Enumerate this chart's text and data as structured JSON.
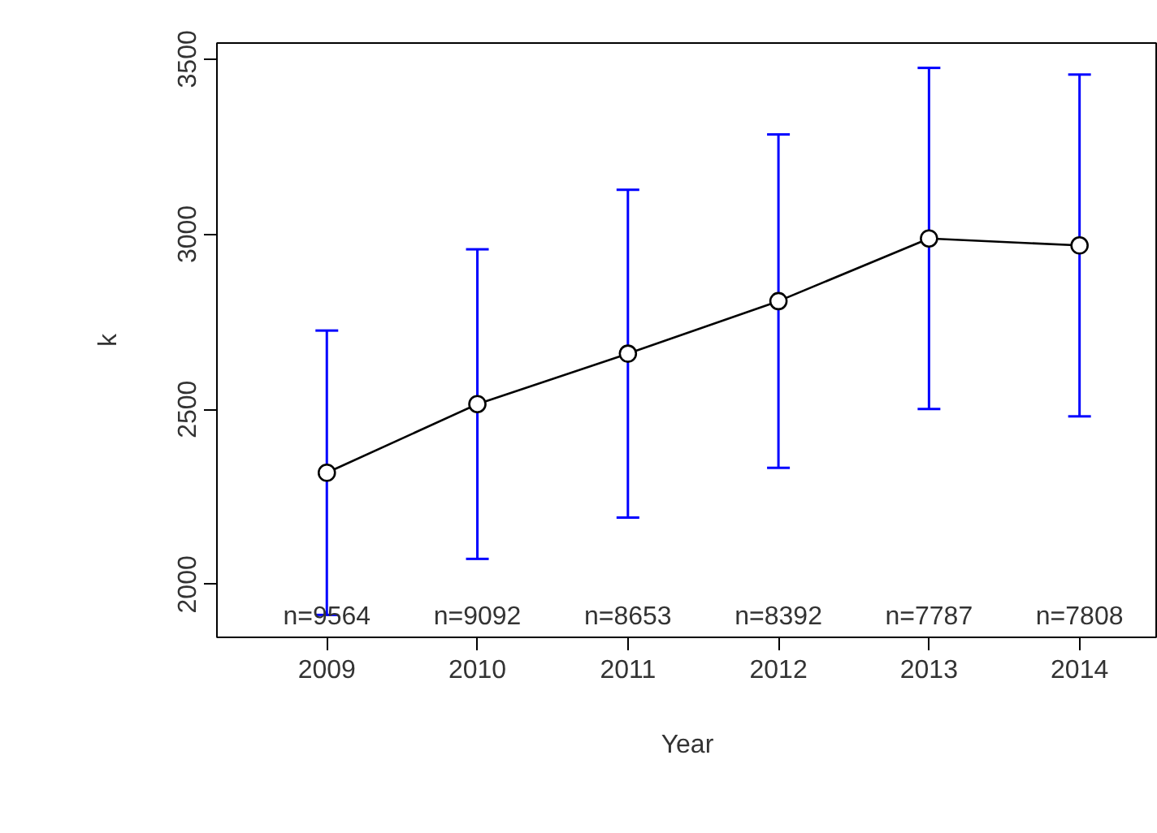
{
  "chart_data": {
    "type": "line",
    "xlabel": "Year",
    "ylabel": "k",
    "x": [
      2009,
      2010,
      2011,
      2012,
      2013,
      2014
    ],
    "series": [
      {
        "color": "#000000",
        "values": [
          2319,
          2515,
          2659,
          2809,
          2988,
          2968
        ],
        "errors": [
          406,
          442,
          468,
          476,
          487,
          488
        ]
      }
    ],
    "xlim": [
      2008.27,
      2014.52
    ],
    "ylim": [
      1849,
      3546
    ],
    "xticks": [
      2009,
      2010,
      2011,
      2012,
      2013,
      2014
    ],
    "yticks": [
      2000,
      2500,
      3000,
      3500
    ],
    "marker": "circle",
    "line_style": "solid",
    "grid": false,
    "annotations": [
      "n=9564",
      "n=9092",
      "n=8653",
      "n=8392",
      "n=7787",
      "n=7808"
    ]
  }
}
